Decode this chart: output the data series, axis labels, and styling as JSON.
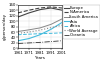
{
  "years": [
    1961,
    1971,
    1981,
    1991,
    2001
  ],
  "series": [
    {
      "label": "Europe",
      "color": "#444444",
      "linestyle": "-",
      "linewidth": 0.8,
      "values": [
        115,
        130,
        142,
        148,
        140
      ]
    },
    {
      "label": "N.America",
      "color": "#444444",
      "linestyle": "--",
      "linewidth": 0.8,
      "values": [
        130,
        140,
        148,
        152,
        148
      ]
    },
    {
      "label": "South America",
      "color": "#888888",
      "linestyle": "-",
      "linewidth": 0.7,
      "values": [
        62,
        68,
        75,
        88,
        108
      ]
    },
    {
      "label": "Asia",
      "color": "#44bbdd",
      "linestyle": "-",
      "linewidth": 0.8,
      "values": [
        28,
        36,
        50,
        70,
        95
      ]
    },
    {
      "label": "Africa",
      "color": "#44bbdd",
      "linestyle": "--",
      "linewidth": 0.7,
      "values": [
        50,
        52,
        54,
        55,
        57
      ]
    },
    {
      "label": "World Average",
      "color": "#888888",
      "linestyle": ":",
      "linewidth": 0.8,
      "values": [
        55,
        60,
        67,
        76,
        85
      ]
    },
    {
      "label": "Oceania",
      "color": "#333333",
      "linestyle": "-.",
      "linewidth": 0.6,
      "values": [
        18,
        20,
        22,
        25,
        28
      ]
    }
  ],
  "xlabel": "Years",
  "ylabel": "g/person/day",
  "xlim": [
    1961,
    2001
  ],
  "ylim": [
    0,
    160
  ],
  "yticks": [
    0,
    20,
    40,
    60,
    80,
    100,
    120,
    140,
    160
  ],
  "xticks": [
    1961,
    1971,
    1981,
    1991,
    2001
  ],
  "background_color": "#ffffff",
  "legend_fontsize": 2.8,
  "axis_label_fontsize": 3.0,
  "tick_fontsize": 2.8
}
